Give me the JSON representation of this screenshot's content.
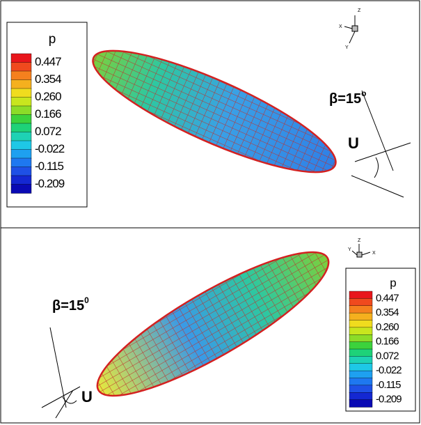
{
  "top_panel": {
    "legend": {
      "title": "p",
      "levels": [
        "0.447",
        "0.354",
        "0.260",
        "0.166",
        "0.072",
        "-0.022",
        "-0.115",
        "-0.209"
      ]
    },
    "angle_label": {
      "text": "β=15",
      "superscript": "o"
    },
    "flow_label": "U",
    "axes": {
      "x": "X",
      "y": "Y",
      "z": "Z"
    }
  },
  "bottom_panel": {
    "legend": {
      "title": "p",
      "levels": [
        "0.447",
        "0.354",
        "0.260",
        "0.166",
        "0.072",
        "-0.022",
        "-0.115",
        "-0.209"
      ]
    },
    "angle_label": {
      "text": "β=15",
      "superscript": "0"
    },
    "flow_label": "U",
    "axes": {
      "x": "X",
      "y": "Y",
      "z": "Z"
    }
  }
}
